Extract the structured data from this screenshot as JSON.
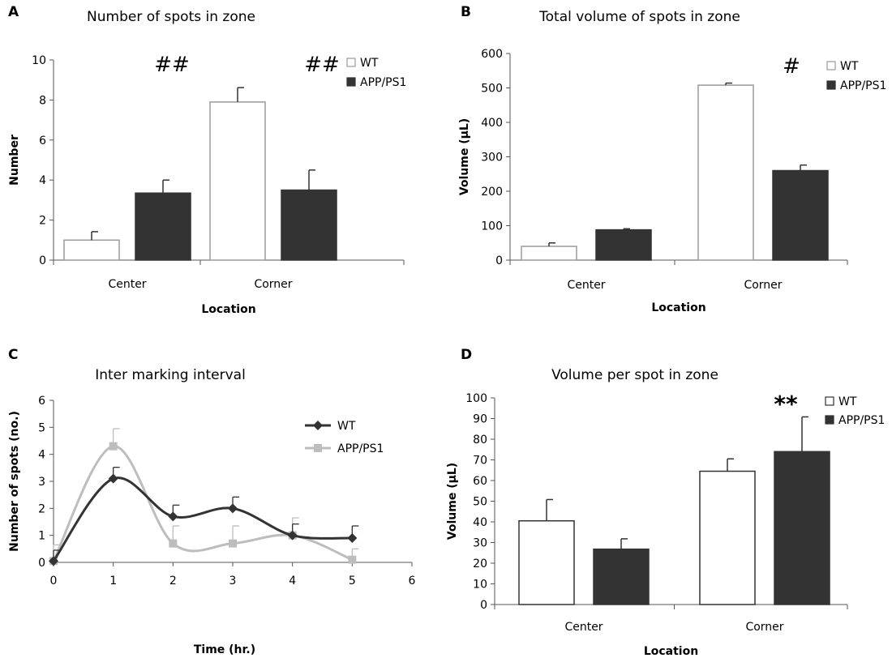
{
  "chart_data": [
    {
      "panel": "A",
      "type": "bar",
      "title": "Number of spots in zone",
      "xlabel": "Location",
      "ylabel": "Number",
      "categories": [
        "Center",
        "Corner"
      ],
      "ylim": [
        0,
        10
      ],
      "yticks": [
        "0",
        "2",
        "4",
        "6",
        "8",
        "10"
      ],
      "series": [
        {
          "name": "WT",
          "values": [
            1.0,
            7.9
          ],
          "errors": [
            0.42,
            0.72
          ],
          "fill": "#ffffff",
          "stroke": "#9a9a9a"
        },
        {
          "name": "APP/PS1",
          "values": [
            3.35,
            3.5
          ],
          "errors": [
            0.65,
            1.0
          ],
          "fill": "#333333",
          "stroke": "#333333"
        }
      ],
      "annotations": [
        "##",
        "##"
      ]
    },
    {
      "panel": "B",
      "type": "bar",
      "title": "Total volume of spots in zone",
      "xlabel": "Location",
      "ylabel": "Volume (µL)",
      "categories": [
        "Center",
        "Corner"
      ],
      "ylim": [
        0,
        600
      ],
      "yticks": [
        "0",
        "100",
        "200",
        "300",
        "400",
        "500",
        "600"
      ],
      "series": [
        {
          "name": "WT",
          "values": [
            40,
            508
          ],
          "errors": [
            10,
            6
          ],
          "fill": "#ffffff",
          "stroke": "#9a9a9a"
        },
        {
          "name": "APP/PS1",
          "values": [
            88,
            260
          ],
          "errors": [
            3,
            16
          ],
          "fill": "#333333",
          "stroke": "#333333"
        }
      ],
      "annotations": [
        "#"
      ]
    },
    {
      "panel": "C",
      "type": "line",
      "title": "Inter marking interval",
      "xlabel": "Time (hr.)",
      "ylabel": "Number of spots (no.)",
      "x": [
        0,
        1,
        2,
        3,
        4,
        5
      ],
      "xlim": [
        0,
        6
      ],
      "ylim": [
        0,
        6
      ],
      "xticks": [
        "0",
        "1",
        "2",
        "3",
        "4",
        "5",
        "6"
      ],
      "yticks": [
        "0",
        "1",
        "2",
        "3",
        "4",
        "5",
        "6"
      ],
      "series": [
        {
          "name": "WT",
          "values": [
            0.05,
            3.1,
            1.7,
            2.0,
            1.0,
            0.9
          ],
          "errors": [
            0.4,
            0.42,
            0.42,
            0.42,
            0.42,
            0.45
          ],
          "color": "#333333",
          "marker": "diamond"
        },
        {
          "name": "APP/PS1",
          "values": [
            0.05,
            4.3,
            0.7,
            0.7,
            1.0,
            0.1
          ],
          "errors": [
            0.6,
            0.65,
            0.65,
            0.65,
            0.65,
            0.4
          ],
          "color": "#bdbdbd",
          "marker": "square"
        }
      ]
    },
    {
      "panel": "D",
      "type": "bar",
      "title": "Volume per spot in zone",
      "xlabel": "Location",
      "ylabel": "Volume (µL)",
      "categories": [
        "Center",
        "Corner"
      ],
      "ylim": [
        0,
        100
      ],
      "yticks": [
        "0",
        "10",
        "20",
        "30",
        "40",
        "50",
        "60",
        "70",
        "80",
        "90",
        "100"
      ],
      "series": [
        {
          "name": "WT",
          "values": [
            40.5,
            64.5
          ],
          "errors": [
            10.3,
            6.0
          ],
          "fill": "#ffffff",
          "stroke": "#333333"
        },
        {
          "name": "APP/PS1",
          "values": [
            26.8,
            74.0
          ],
          "errors": [
            5.0,
            16.8
          ],
          "fill": "#333333",
          "stroke": "#333333"
        }
      ],
      "annotations": [
        "**"
      ]
    }
  ]
}
